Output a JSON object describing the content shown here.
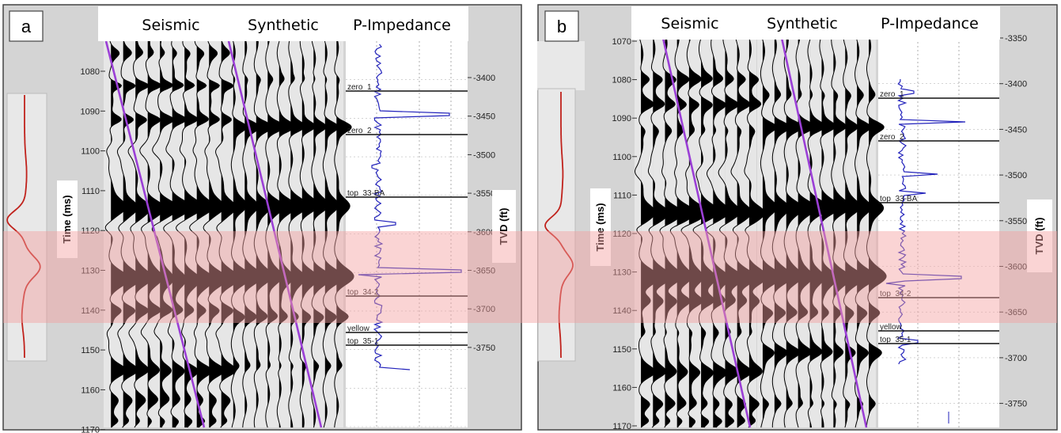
{
  "colors": {
    "panel_bg": "#d4d4d4",
    "track_bg": "#e6e6e6",
    "highlight": "#f5a0a0",
    "wavelet": "#c0221c",
    "trend_line": "#9b3fd6",
    "impedance": "#2222bb",
    "wiggle": "#000000"
  },
  "panels": [
    {
      "label": "a",
      "headers": [
        "Seismic",
        "Synthetic",
        "P-Impedance"
      ],
      "time_axis": {
        "label": "Time (ms)",
        "ticks": [
          "1080",
          "1090",
          "1100",
          "1110",
          "1120",
          "1130",
          "1140",
          "1150",
          "1160",
          "1170"
        ]
      },
      "depth_axis": {
        "label": "TVD (ft)",
        "ticks": [
          "-3400",
          "-3450",
          "-3500",
          "-3550",
          "-3600",
          "-3650",
          "-3700",
          "-3750"
        ]
      },
      "horizons": [
        "zero_1",
        "zero_2",
        "top_33-BA",
        "top_34-2",
        "yellow",
        "top_35-1"
      ]
    },
    {
      "label": "b",
      "headers": [
        "Seismic",
        "Synthetic",
        "P-Impedance"
      ],
      "time_axis": {
        "label": "Time (ms)",
        "ticks": [
          "1070",
          "1080",
          "1090",
          "1100",
          "1110",
          "1120",
          "1130",
          "1140",
          "1150",
          "1160",
          "1170"
        ]
      },
      "depth_axis": {
        "label": "TVD (ft)",
        "ticks": [
          "-3350",
          "-3400",
          "-3450",
          "-3500",
          "-3550",
          "-3600",
          "-3650",
          "-3700",
          "-3750"
        ]
      },
      "horizons": [
        "zero_1",
        "zero_2",
        "top_33-BA",
        "top_34-2",
        "yellow",
        "top_35-1"
      ]
    }
  ]
}
